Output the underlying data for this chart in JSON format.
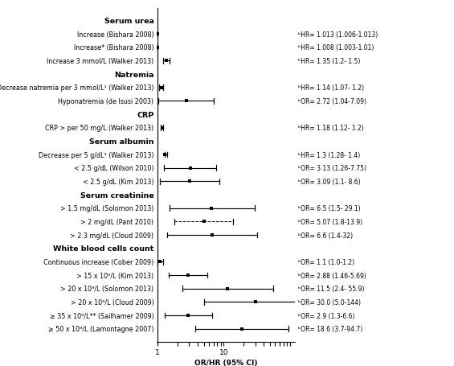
{
  "sections": [
    {
      "header": "Serum urea",
      "rows": [
        {
          "label": "Increase (Bishara 2008)",
          "estimate": 1.013,
          "ci_lo": 1.006,
          "ci_hi": 1.013,
          "result_text": "ᵇHR= 1.013 (1.006-1.013)",
          "is_dashed": false
        },
        {
          "label": "Increase* (Bishara 2008)",
          "estimate": 1.008,
          "ci_lo": 1.003,
          "ci_hi": 1.01,
          "result_text": "ᵇHR= 1.008 (1.003-1.01)",
          "is_dashed": false
        },
        {
          "label": "Increase 3 mmol/L (Walker 2013)",
          "estimate": 1.35,
          "ci_lo": 1.2,
          "ci_hi": 1.5,
          "result_text": "ᵇHR= 1.35 (1.2- 1.5)",
          "is_dashed": false
        }
      ]
    },
    {
      "header": "Natremia",
      "rows": [
        {
          "label": "Decrease natremia per 3 mmol/L¹ (Walker 2013)",
          "estimate": 1.14,
          "ci_lo": 1.07,
          "ci_hi": 1.2,
          "result_text": "ᵇHR= 1.14 (1.07- 1.2)",
          "is_dashed": false
        },
        {
          "label": "Hyponatremia (de Isusi 2003)",
          "estimate": 2.72,
          "ci_lo": 1.04,
          "ci_hi": 7.09,
          "result_text": "ᵇOR= 2.72 (1.04-7.09)",
          "is_dashed": false
        }
      ]
    },
    {
      "header": "CRP",
      "rows": [
        {
          "label": "CRP > per 50 mg/L (Walker 2013)",
          "estimate": 1.18,
          "ci_lo": 1.12,
          "ci_hi": 1.2,
          "result_text": "ᵇHR= 1.18 (1.12- 1.2)",
          "is_dashed": false
        }
      ]
    },
    {
      "header": "Serum albumin",
      "rows": [
        {
          "label": "Decrease per 5 g/dL¹ (Walker 2013)",
          "estimate": 1.3,
          "ci_lo": 1.28,
          "ci_hi": 1.4,
          "result_text": "ᵇHR= 1.3 (1.28- 1.4)",
          "is_dashed": false
        },
        {
          "label": "< 2.5 g/dL (Wilson 2010)",
          "estimate": 3.13,
          "ci_lo": 1.26,
          "ci_hi": 7.75,
          "result_text": "ᵇOR= 3.13 (1.26-7.75)",
          "is_dashed": false
        },
        {
          "label": "< 2.5 g/dL (Kim 2013)",
          "estimate": 3.09,
          "ci_lo": 1.1,
          "ci_hi": 8.6,
          "result_text": "ᵇOR= 3.09 (1.1- 8.6)",
          "is_dashed": false
        }
      ]
    },
    {
      "header": "Serum creatinine",
      "rows": [
        {
          "label": "> 1.5 mg/dL (Solomon 2013)",
          "estimate": 6.5,
          "ci_lo": 1.5,
          "ci_hi": 29.1,
          "result_text": "ᵇOR= 6.5 (1.5- 29.1)",
          "is_dashed": false
        },
        {
          "label": "> 2 mg/dL (Pant 2010)",
          "estimate": 5.07,
          "ci_lo": 1.8,
          "ci_hi": 13.9,
          "result_text": "ᵇOR= 5.07 (1.8-13.9)",
          "is_dashed": true
        },
        {
          "label": "> 2.3 mg/dL (Cloud 2009)",
          "estimate": 6.6,
          "ci_lo": 1.4,
          "ci_hi": 32.0,
          "result_text": "ᵇOR= 6.6 (1.4-32)",
          "is_dashed": false
        }
      ]
    },
    {
      "header": "White blood cells count",
      "rows": [
        {
          "label": "Continuous increase (Cober 2009)",
          "estimate": 1.1,
          "ci_lo": 1.0,
          "ci_hi": 1.2,
          "result_text": "ᵇOR= 1.1 (1.0-1.2)",
          "is_dashed": false
        },
        {
          "label": "> 15 x 10⁹/L (Kim 2013)",
          "estimate": 2.88,
          "ci_lo": 1.46,
          "ci_hi": 5.69,
          "result_text": "ᵇOR= 2.88 (1.46-5.69)",
          "is_dashed": false
        },
        {
          "label": "> 20 x 10⁹/L (Solomon 2013)",
          "estimate": 11.5,
          "ci_lo": 2.4,
          "ci_hi": 55.9,
          "result_text": "ᵇOR= 11.5 (2.4- 55.9)",
          "is_dashed": false
        },
        {
          "label": "> 20 x 10⁹/L (Cloud 2009)",
          "estimate": 30.0,
          "ci_lo": 5.0,
          "ci_hi": 144.0,
          "result_text": "ᵇOR= 30.0 (5.0-144)",
          "is_dashed": false
        },
        {
          "label": "≥ 35 x 10⁹/L** (Sailhamer 2009)",
          "estimate": 2.9,
          "ci_lo": 1.3,
          "ci_hi": 6.6,
          "result_text": "ᵇOR= 2.9 (1.3-6.6)",
          "is_dashed": false
        },
        {
          "label": "≥ 50 x 10⁹/L (Lamontagne 2007)",
          "estimate": 18.6,
          "ci_lo": 3.7,
          "ci_hi": 94.7,
          "result_text": "ᵇOR= 18.6 (3.7-94.7)",
          "is_dashed": false
        }
      ]
    }
  ],
  "xmin": 0.97,
  "xmax": 120.0,
  "x_axis_label": "OR/HR (95% CI)",
  "ref_line": 1.0,
  "marker_color": "black",
  "ci_color": "black",
  "header_fontsize": 6.8,
  "label_fontsize": 5.8,
  "result_fontsize": 5.5,
  "axis_label_fontsize": 6.5
}
